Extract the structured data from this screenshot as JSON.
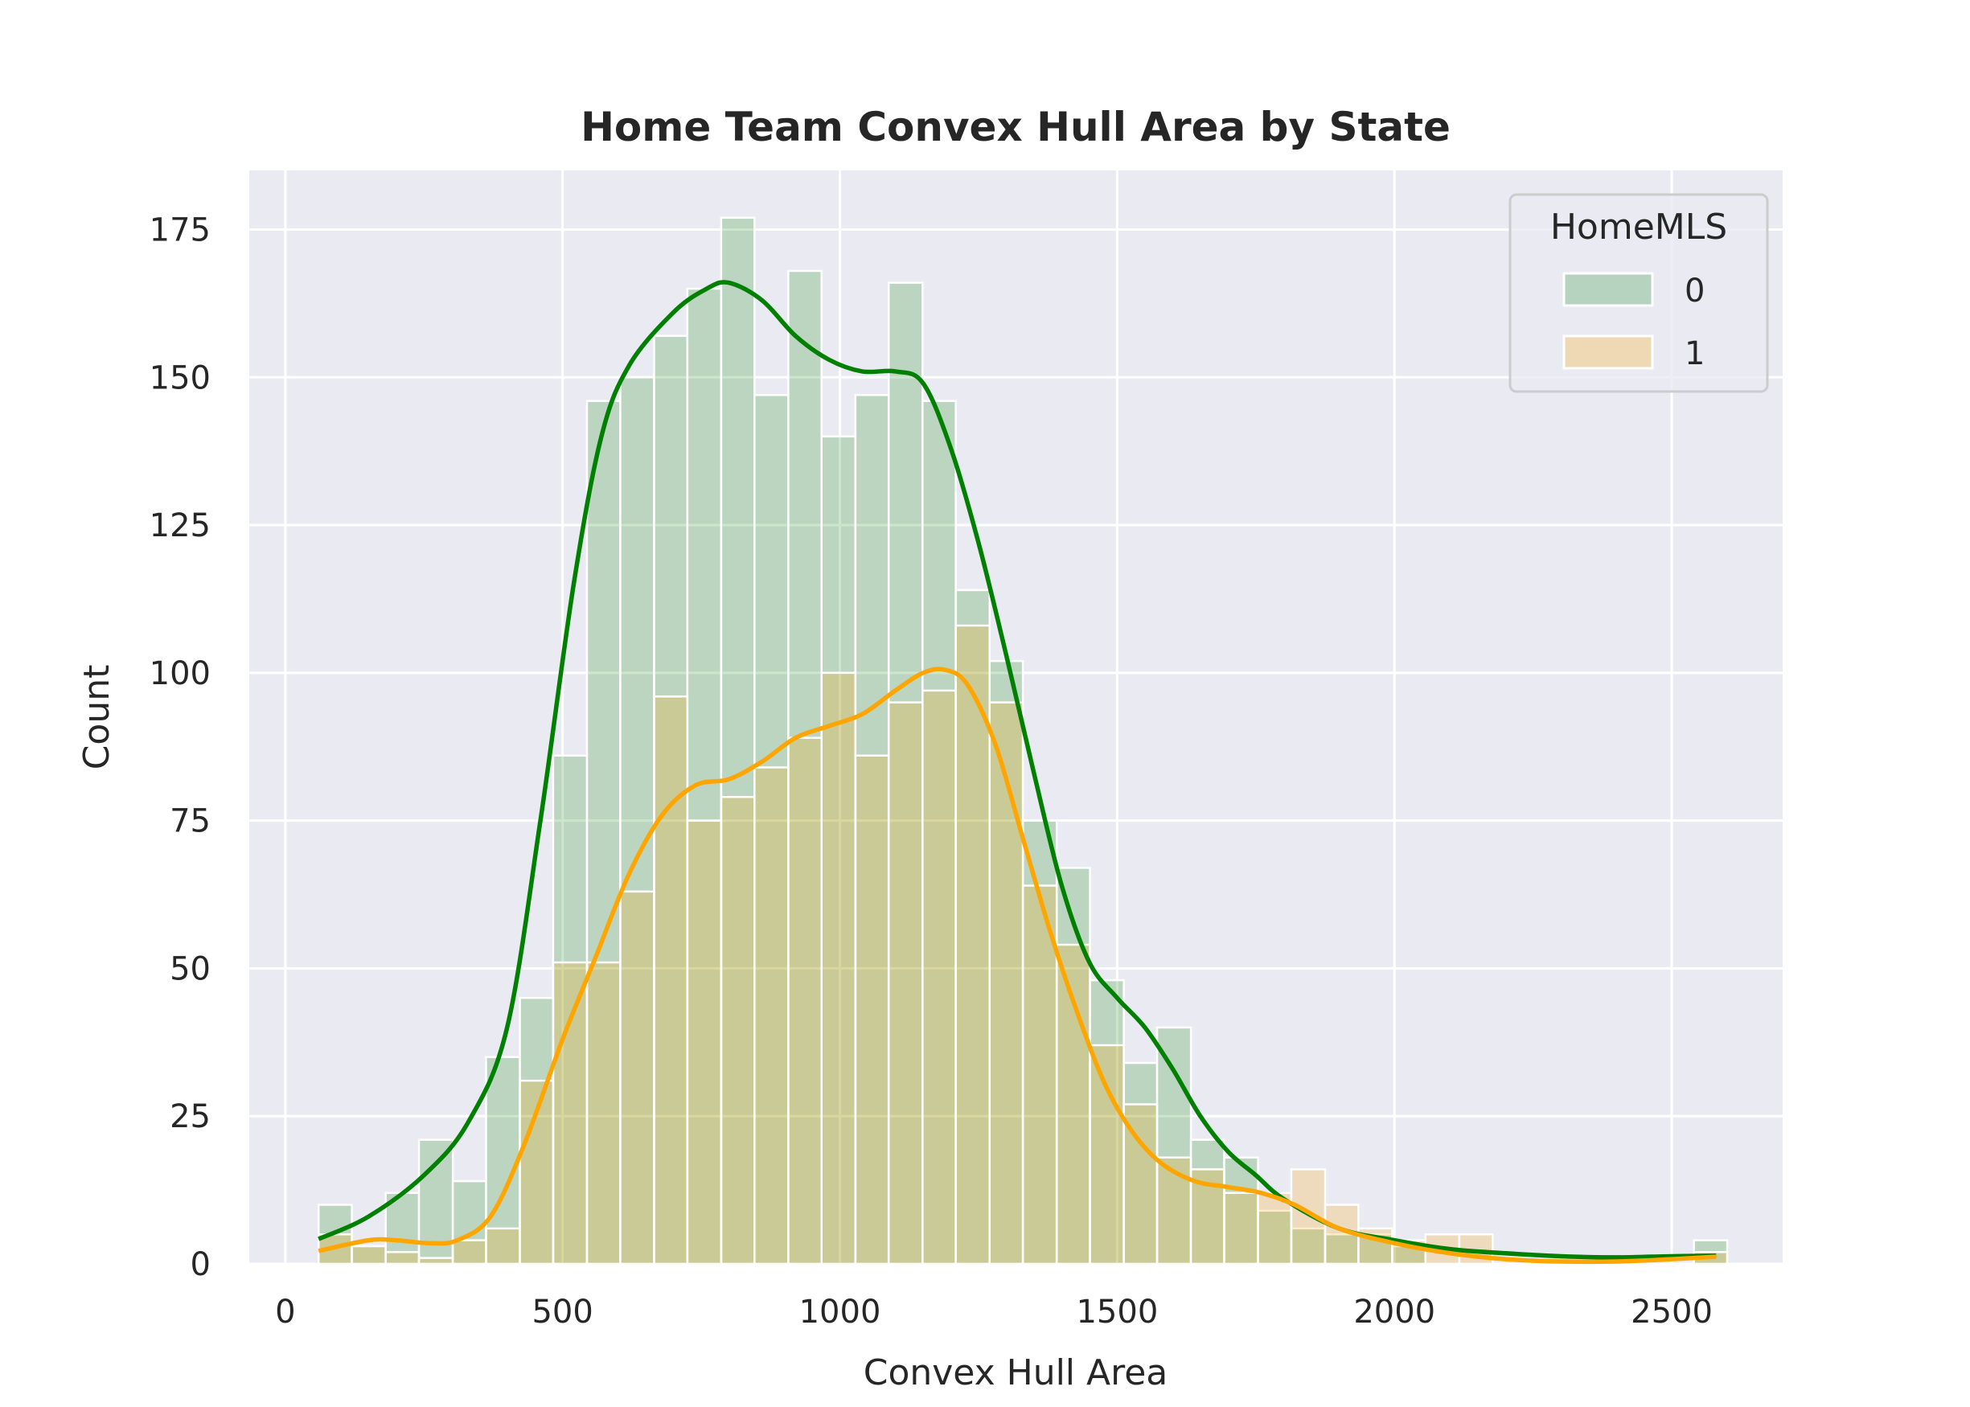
{
  "chart_data": {
    "type": "histogram",
    "title": "Home Team Convex Hull Area by State",
    "xlabel": "Convex Hull Area",
    "ylabel": "Count",
    "xlim": [
      -65,
      2700
    ],
    "ylim": [
      0,
      185
    ],
    "xticks": [
      0,
      500,
      1000,
      1500,
      2000,
      2500
    ],
    "yticks": [
      0,
      25,
      50,
      75,
      100,
      125,
      150,
      175
    ],
    "grid": true,
    "legend": {
      "title": "HomeMLS",
      "placement": "top-right"
    },
    "bin_edges": [
      60,
      120,
      181,
      241,
      302,
      362,
      423,
      483,
      544,
      604,
      665,
      725,
      786,
      846,
      907,
      967,
      1028,
      1088,
      1149,
      1209,
      1270,
      1330,
      1391,
      1451,
      1512,
      1572,
      1633,
      1693,
      1754,
      1814,
      1875,
      1935,
      1996,
      2056,
      2117,
      2177,
      2238,
      2298,
      2359,
      2419,
      2480,
      2540,
      2600
    ],
    "series": [
      {
        "name": "0",
        "bar_color": "#b6d3c0",
        "kde_color": "#008000",
        "counts": [
          10,
          3,
          12,
          21,
          14,
          35,
          45,
          86,
          146,
          150,
          157,
          165,
          177,
          147,
          168,
          140,
          147,
          166,
          146,
          114,
          102,
          75,
          67,
          48,
          34,
          40,
          21,
          18,
          9,
          6,
          5,
          5,
          3,
          0,
          0,
          0,
          0,
          0,
          0,
          0,
          0,
          4
        ],
        "kde": [
          [
            60,
            4.2
          ],
          [
            150,
            8
          ],
          [
            250,
            15
          ],
          [
            330,
            24
          ],
          [
            400,
            40
          ],
          [
            460,
            75
          ],
          [
            520,
            115
          ],
          [
            570,
            140
          ],
          [
            620,
            152
          ],
          [
            700,
            161
          ],
          [
            760,
            165
          ],
          [
            800,
            166
          ],
          [
            860,
            163
          ],
          [
            920,
            157
          ],
          [
            980,
            153
          ],
          [
            1040,
            151
          ],
          [
            1100,
            151
          ],
          [
            1150,
            149
          ],
          [
            1200,
            138
          ],
          [
            1250,
            122
          ],
          [
            1300,
            103
          ],
          [
            1350,
            83
          ],
          [
            1400,
            64
          ],
          [
            1450,
            51
          ],
          [
            1500,
            45
          ],
          [
            1550,
            40
          ],
          [
            1600,
            33
          ],
          [
            1650,
            25
          ],
          [
            1700,
            19
          ],
          [
            1750,
            15
          ],
          [
            1800,
            11
          ],
          [
            1900,
            6
          ],
          [
            2000,
            4
          ],
          [
            2100,
            2.5
          ],
          [
            2200,
            1.8
          ],
          [
            2300,
            1.3
          ],
          [
            2400,
            1.1
          ],
          [
            2500,
            1.3
          ],
          [
            2580,
            1.4
          ]
        ]
      },
      {
        "name": "1",
        "bar_color": "#efd9b4",
        "kde_color": "#ffa500",
        "counts": [
          5,
          3,
          2,
          1,
          4,
          6,
          31,
          51,
          51,
          63,
          96,
          75,
          79,
          84,
          89,
          100,
          86,
          95,
          97,
          108,
          95,
          64,
          54,
          37,
          27,
          18,
          16,
          12,
          12,
          16,
          10,
          6,
          4,
          5,
          5,
          0,
          0,
          0,
          0,
          0,
          0,
          2
        ],
        "kde": [
          [
            60,
            2.2
          ],
          [
            150,
            4
          ],
          [
            200,
            4
          ],
          [
            260,
            3.5
          ],
          [
            310,
            4
          ],
          [
            370,
            8
          ],
          [
            430,
            20
          ],
          [
            500,
            38
          ],
          [
            560,
            52
          ],
          [
            620,
            66
          ],
          [
            680,
            76
          ],
          [
            740,
            81
          ],
          [
            800,
            82
          ],
          [
            860,
            85
          ],
          [
            920,
            89
          ],
          [
            980,
            91
          ],
          [
            1040,
            93
          ],
          [
            1100,
            97
          ],
          [
            1150,
            100
          ],
          [
            1190,
            100.5
          ],
          [
            1230,
            98
          ],
          [
            1280,
            88
          ],
          [
            1330,
            72
          ],
          [
            1380,
            56
          ],
          [
            1430,
            42
          ],
          [
            1480,
            30
          ],
          [
            1530,
            22
          ],
          [
            1580,
            17
          ],
          [
            1640,
            14
          ],
          [
            1700,
            13
          ],
          [
            1760,
            12
          ],
          [
            1820,
            10
          ],
          [
            1900,
            6
          ],
          [
            2000,
            3.5
          ],
          [
            2100,
            1.8
          ],
          [
            2200,
            0.8
          ],
          [
            2300,
            0.4
          ],
          [
            2400,
            0.4
          ],
          [
            2500,
            0.8
          ],
          [
            2580,
            1.2
          ]
        ]
      }
    ]
  }
}
